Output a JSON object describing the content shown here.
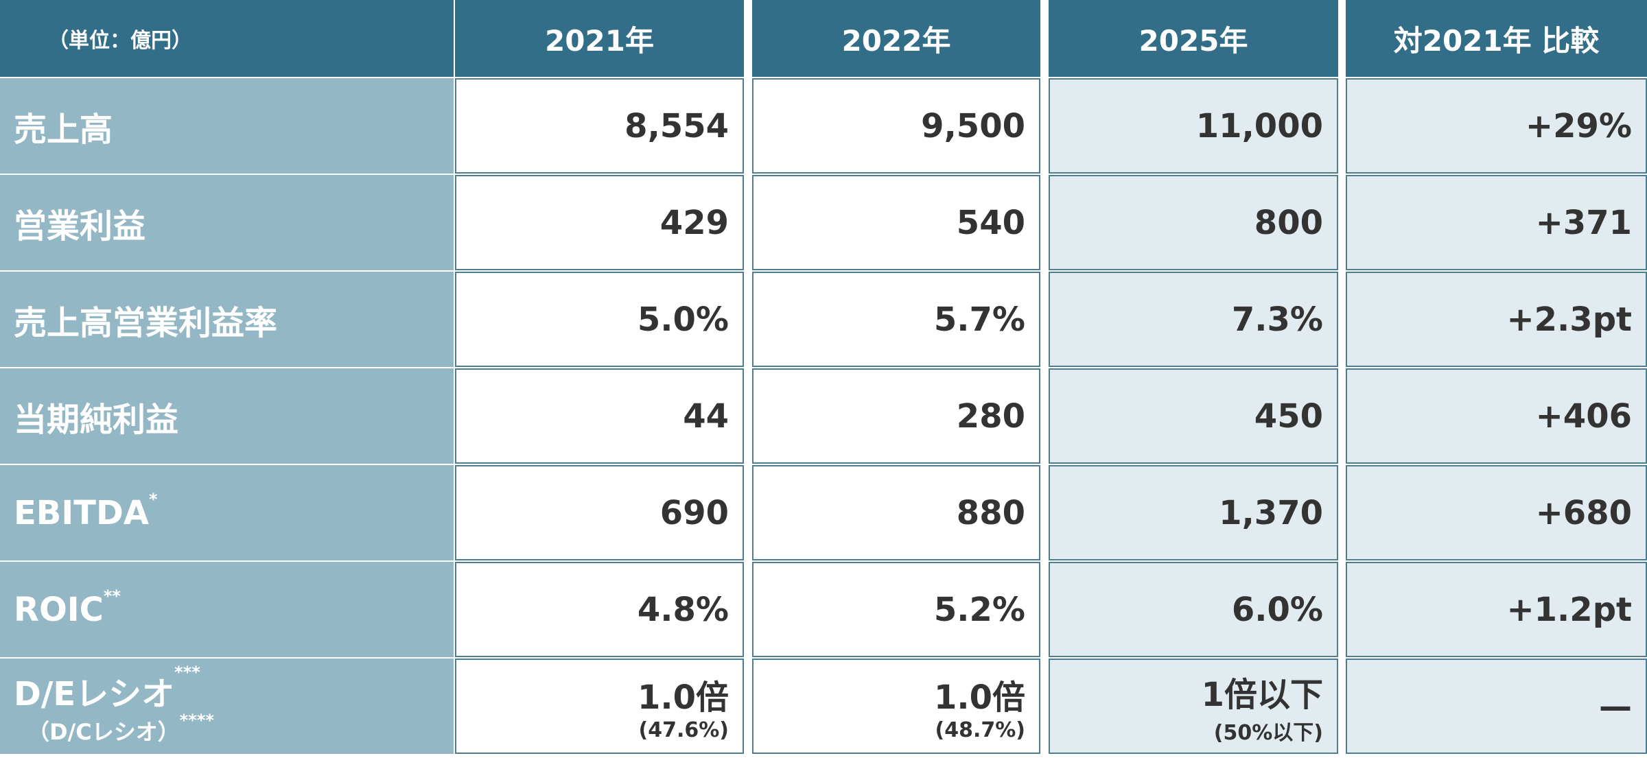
{
  "table": {
    "header": [
      "（単位：億円）",
      "2021年",
      "2022年",
      "2025年",
      "対2021年 比較"
    ],
    "rows": [
      {
        "label": "売上高",
        "values": [
          "8,554",
          "9,500",
          "11,000",
          "+29%"
        ]
      },
      {
        "label": "営業利益",
        "values": [
          "429",
          "540",
          "800",
          "+371"
        ]
      },
      {
        "label": "売上高営業利益率",
        "values": [
          "5.0%",
          "5.7%",
          "7.3%",
          "+2.3pt"
        ]
      },
      {
        "label": "当期純利益",
        "values": [
          "44",
          "280",
          "450",
          "+406"
        ]
      },
      {
        "label": "EBITDA",
        "label_note": "*",
        "values": [
          "690",
          "880",
          "1,370",
          "+680"
        ]
      },
      {
        "label": "ROIC",
        "label_note": "**",
        "values": [
          "4.8%",
          "5.2%",
          "6.0%",
          "+1.2pt"
        ]
      },
      {
        "label": "D/Eレシオ",
        "label_note": "***",
        "label_sub": "（D/Cレシオ）",
        "label_sub_note": "****",
        "values": [
          {
            "main": "1.0倍",
            "sub": "(47.6%)"
          },
          {
            "main": "1.0倍",
            "sub": "(48.7%)"
          },
          {
            "main": "1倍以下",
            "sub": "(50%以下)"
          },
          "—"
        ]
      }
    ]
  }
}
